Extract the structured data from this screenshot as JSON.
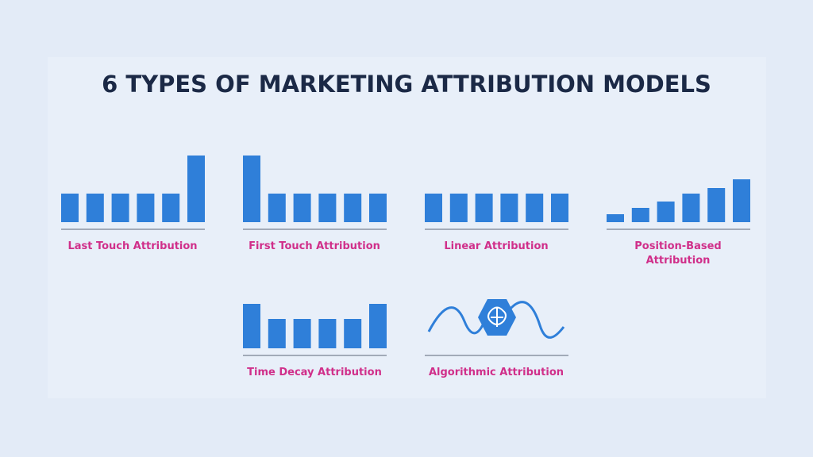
{
  "title": "6 TYPES OF MARKETING ATTRIBUTION MODELS",
  "models": [
    {
      "label": [
        "Last Touch Attribution"
      ],
      "bars": [
        36,
        36,
        36,
        36,
        36,
        84
      ]
    },
    {
      "label": [
        "First Touch Attribution"
      ],
      "bars": [
        84,
        36,
        36,
        36,
        36,
        36
      ]
    },
    {
      "label": [
        "Linear Attribution"
      ],
      "bars": [
        36,
        36,
        36,
        36,
        36,
        36
      ]
    },
    {
      "label": [
        "Position-Based",
        "Attribution"
      ],
      "bars": [
        10,
        18,
        26,
        36,
        43,
        54
      ]
    },
    {
      "label": [
        "Time Decay Attribution"
      ],
      "bars": [
        56,
        37,
        37,
        37,
        37,
        56
      ]
    },
    {
      "label": [
        "Algorithmic Attribution"
      ]
    }
  ]
}
